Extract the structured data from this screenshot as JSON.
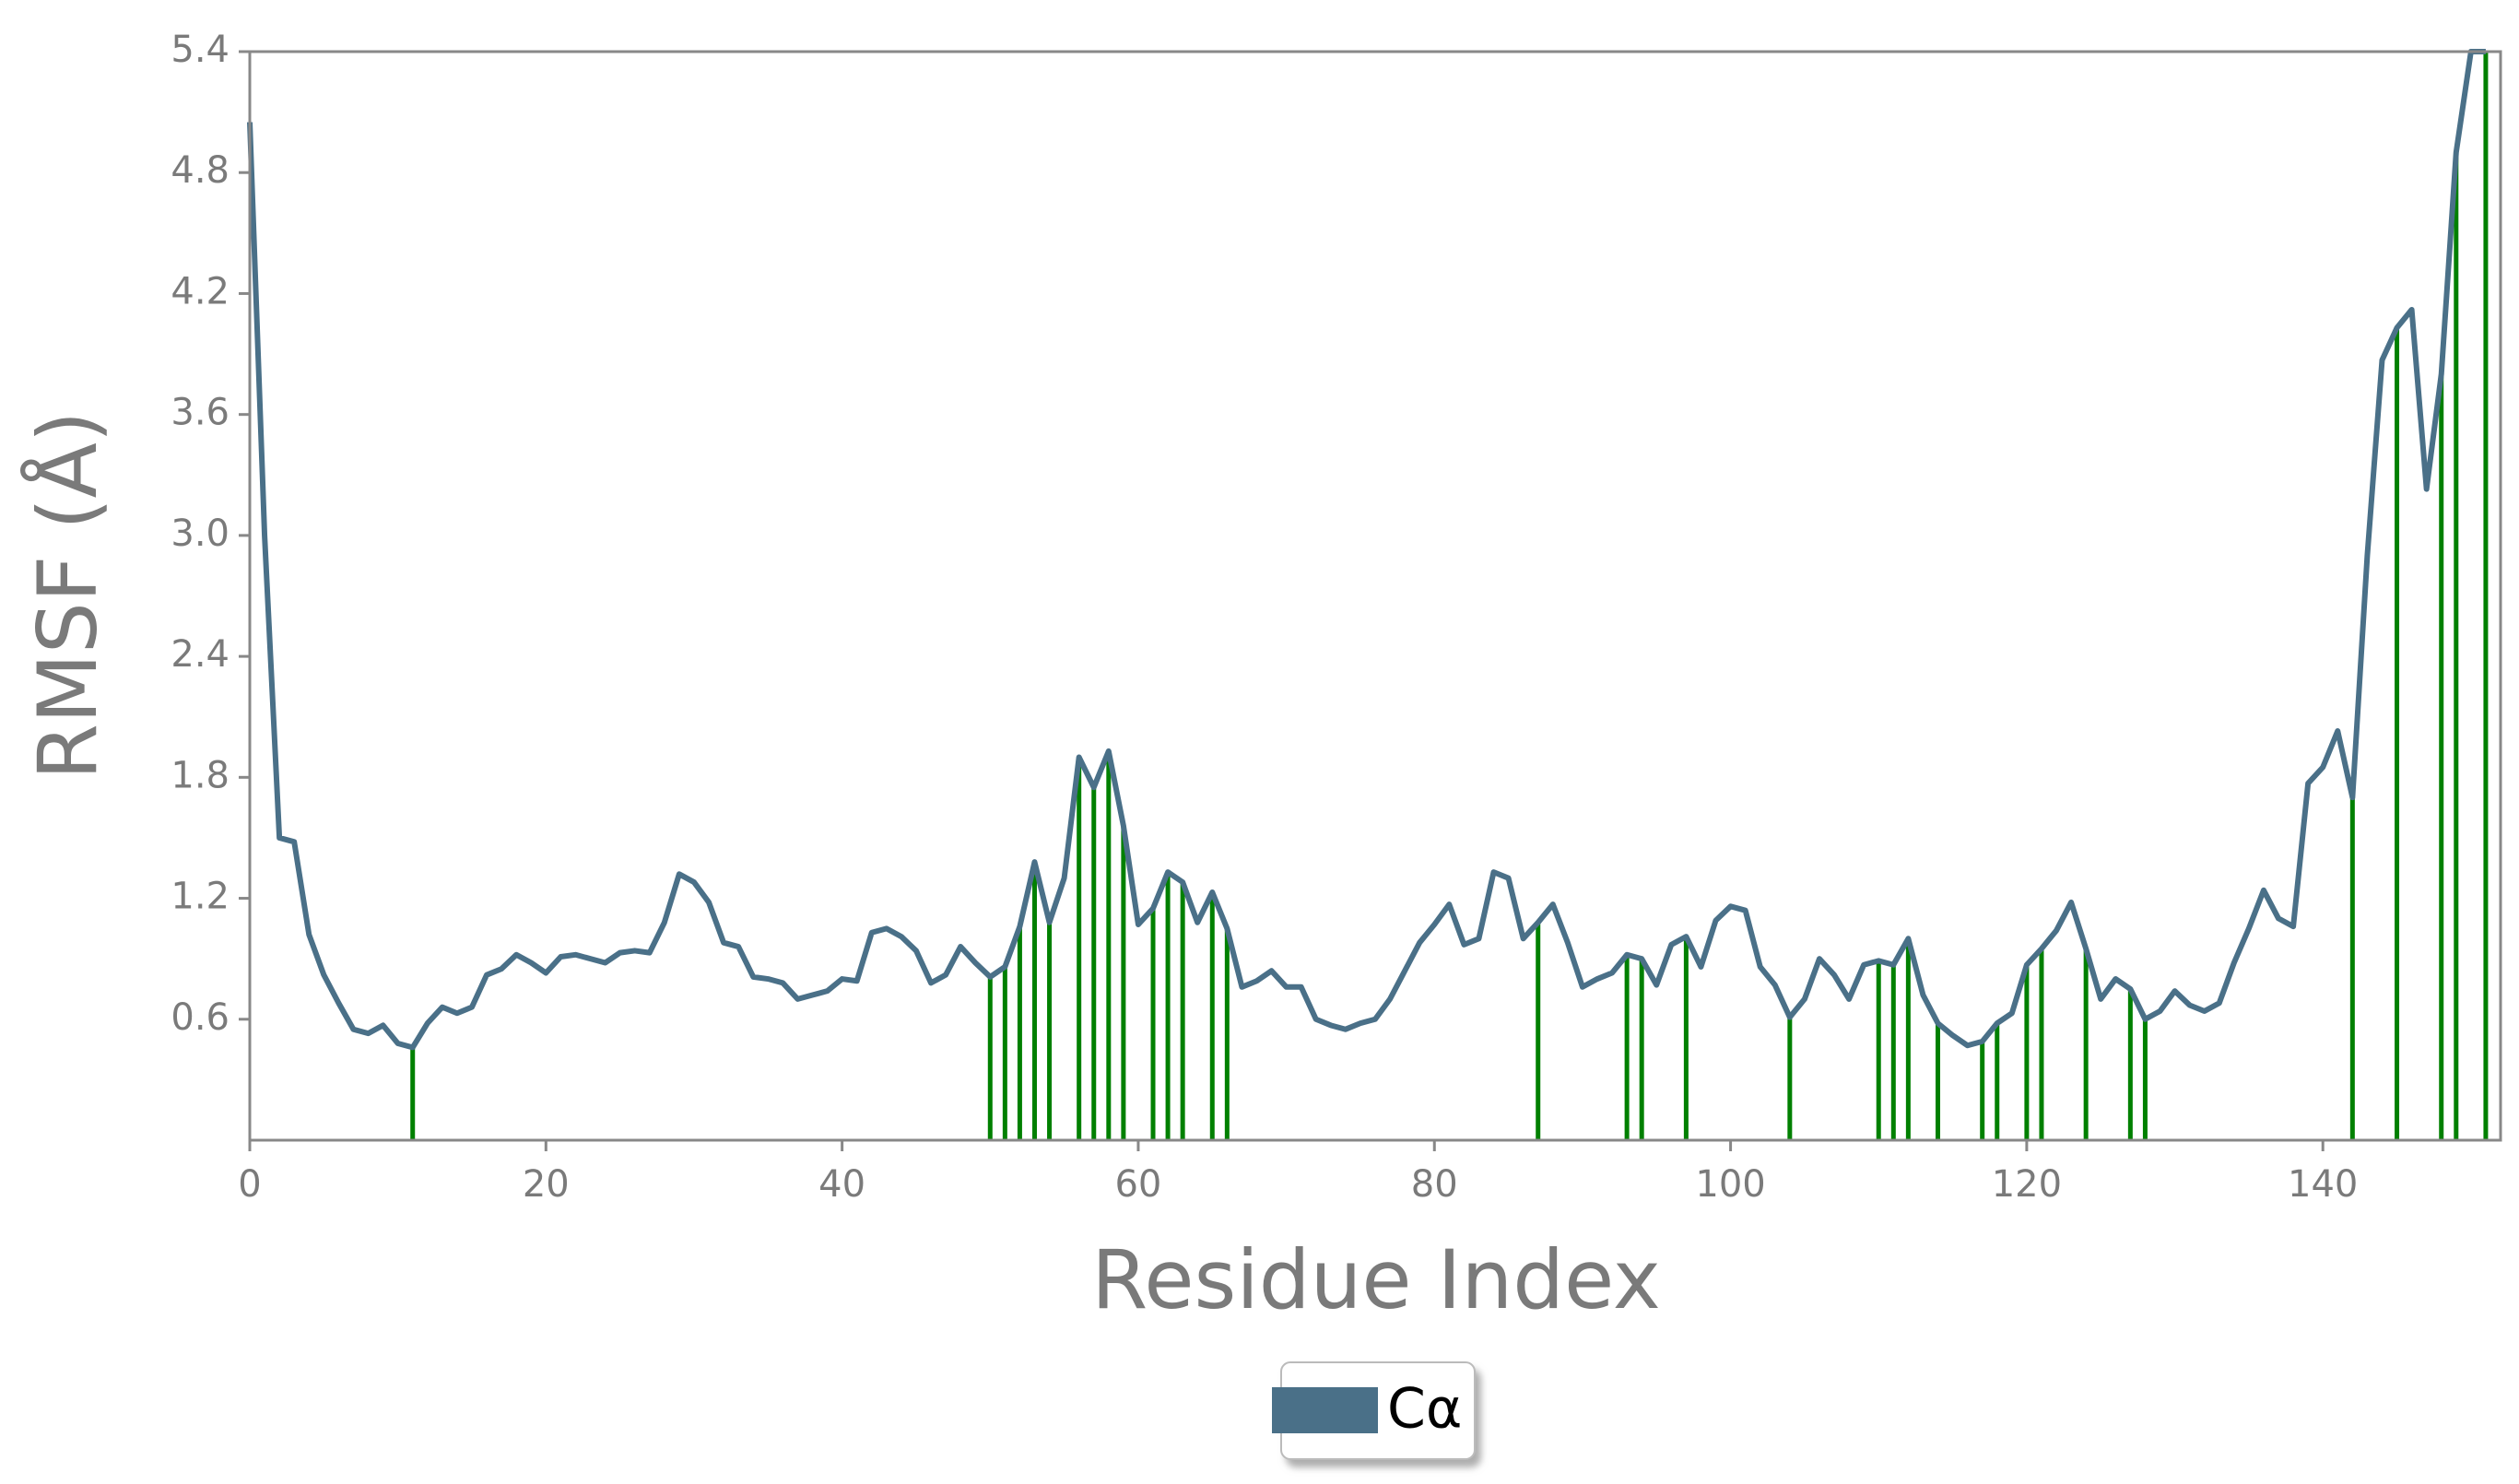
{
  "chart_data": {
    "type": "line",
    "xlabel": "Residue Index",
    "ylabel": "RMSF (Å)",
    "x": [
      0,
      1,
      2,
      3,
      4,
      5,
      6,
      7,
      8,
      9,
      10,
      11,
      12,
      13,
      14,
      15,
      16,
      17,
      18,
      19,
      20,
      21,
      22,
      23,
      24,
      25,
      26,
      27,
      28,
      29,
      30,
      31,
      32,
      33,
      34,
      35,
      36,
      37,
      38,
      39,
      40,
      41,
      42,
      43,
      44,
      45,
      46,
      47,
      48,
      49,
      50,
      51,
      52,
      53,
      54,
      55,
      56,
      57,
      58,
      59,
      60,
      61,
      62,
      63,
      64,
      65,
      66,
      67,
      68,
      69,
      70,
      71,
      72,
      73,
      74,
      75,
      76,
      77,
      78,
      79,
      80,
      81,
      82,
      83,
      84,
      85,
      86,
      87,
      88,
      89,
      90,
      91,
      92,
      93,
      94,
      95,
      96,
      97,
      98,
      99,
      100,
      101,
      102,
      103,
      104,
      105,
      106,
      107,
      108,
      109,
      110,
      111,
      112,
      113,
      114,
      115,
      116,
      117,
      118,
      119,
      120,
      121,
      122,
      123,
      124,
      125,
      126,
      127,
      128,
      129,
      130,
      131,
      132,
      133,
      134,
      135,
      136,
      137,
      138,
      139,
      140,
      141,
      142,
      143,
      144,
      145,
      146,
      147,
      148,
      149,
      150,
      151
    ],
    "series": [
      {
        "name": "Cα",
        "color": "#4a7088",
        "values": [
          5.05,
          3.0,
          1.5,
          1.48,
          1.02,
          0.82,
          0.68,
          0.55,
          0.53,
          0.57,
          0.48,
          0.46,
          0.58,
          0.66,
          0.63,
          0.66,
          0.82,
          0.85,
          0.92,
          0.88,
          0.83,
          0.91,
          0.92,
          0.9,
          0.88,
          0.93,
          0.94,
          0.93,
          1.08,
          1.32,
          1.28,
          1.18,
          0.98,
          0.96,
          0.81,
          0.8,
          0.78,
          0.7,
          0.72,
          0.74,
          0.8,
          0.79,
          1.03,
          1.05,
          1.01,
          0.94,
          0.78,
          0.82,
          0.96,
          0.88,
          0.81,
          0.86,
          1.06,
          1.38,
          1.08,
          1.3,
          1.9,
          1.75,
          1.93,
          1.56,
          1.07,
          1.15,
          1.33,
          1.28,
          1.08,
          1.23,
          1.05,
          0.76,
          0.79,
          0.84,
          0.76,
          0.76,
          0.6,
          0.57,
          0.55,
          0.58,
          0.6,
          0.7,
          0.84,
          0.98,
          1.07,
          1.17,
          0.97,
          1.0,
          1.33,
          1.3,
          1.0,
          1.08,
          1.17,
          0.98,
          0.76,
          0.8,
          0.83,
          0.92,
          0.9,
          0.77,
          0.97,
          1.01,
          0.86,
          1.09,
          1.16,
          1.14,
          0.86,
          0.77,
          0.61,
          0.7,
          0.9,
          0.82,
          0.7,
          0.87,
          0.89,
          0.87,
          1.0,
          0.72,
          0.58,
          0.52,
          0.47,
          0.49,
          0.58,
          0.63,
          0.87,
          0.95,
          1.04,
          1.18,
          0.95,
          0.7,
          0.8,
          0.75,
          0.6,
          0.64,
          0.74,
          0.67,
          0.64,
          0.68,
          0.88,
          1.05,
          1.24,
          1.1,
          1.06,
          1.77,
          1.85,
          2.03,
          1.7,
          2.9,
          3.87,
          4.03,
          4.12,
          3.23,
          3.8,
          4.9,
          5.4,
          5.4
        ]
      }
    ],
    "highlight": {
      "color": "#008000",
      "x": [
        11,
        50,
        51,
        52,
        53,
        54,
        56,
        57,
        58,
        59,
        61,
        62,
        63,
        65,
        66,
        87,
        93,
        94,
        97,
        104,
        110,
        111,
        112,
        114,
        117,
        118,
        120,
        121,
        124,
        127,
        128,
        142,
        145,
        148,
        149,
        151
      ]
    },
    "xlim": [
      0,
      152
    ],
    "ylim": [
      0,
      5.4
    ],
    "xticks": [
      0,
      20,
      40,
      60,
      80,
      100,
      120,
      140
    ],
    "yticks": [
      0.6,
      1.2,
      1.8,
      2.4,
      {
        "value": 3,
        "label": "3.0"
      },
      3.6,
      4.2,
      4.8,
      5.4
    ],
    "legend": "bottom"
  }
}
